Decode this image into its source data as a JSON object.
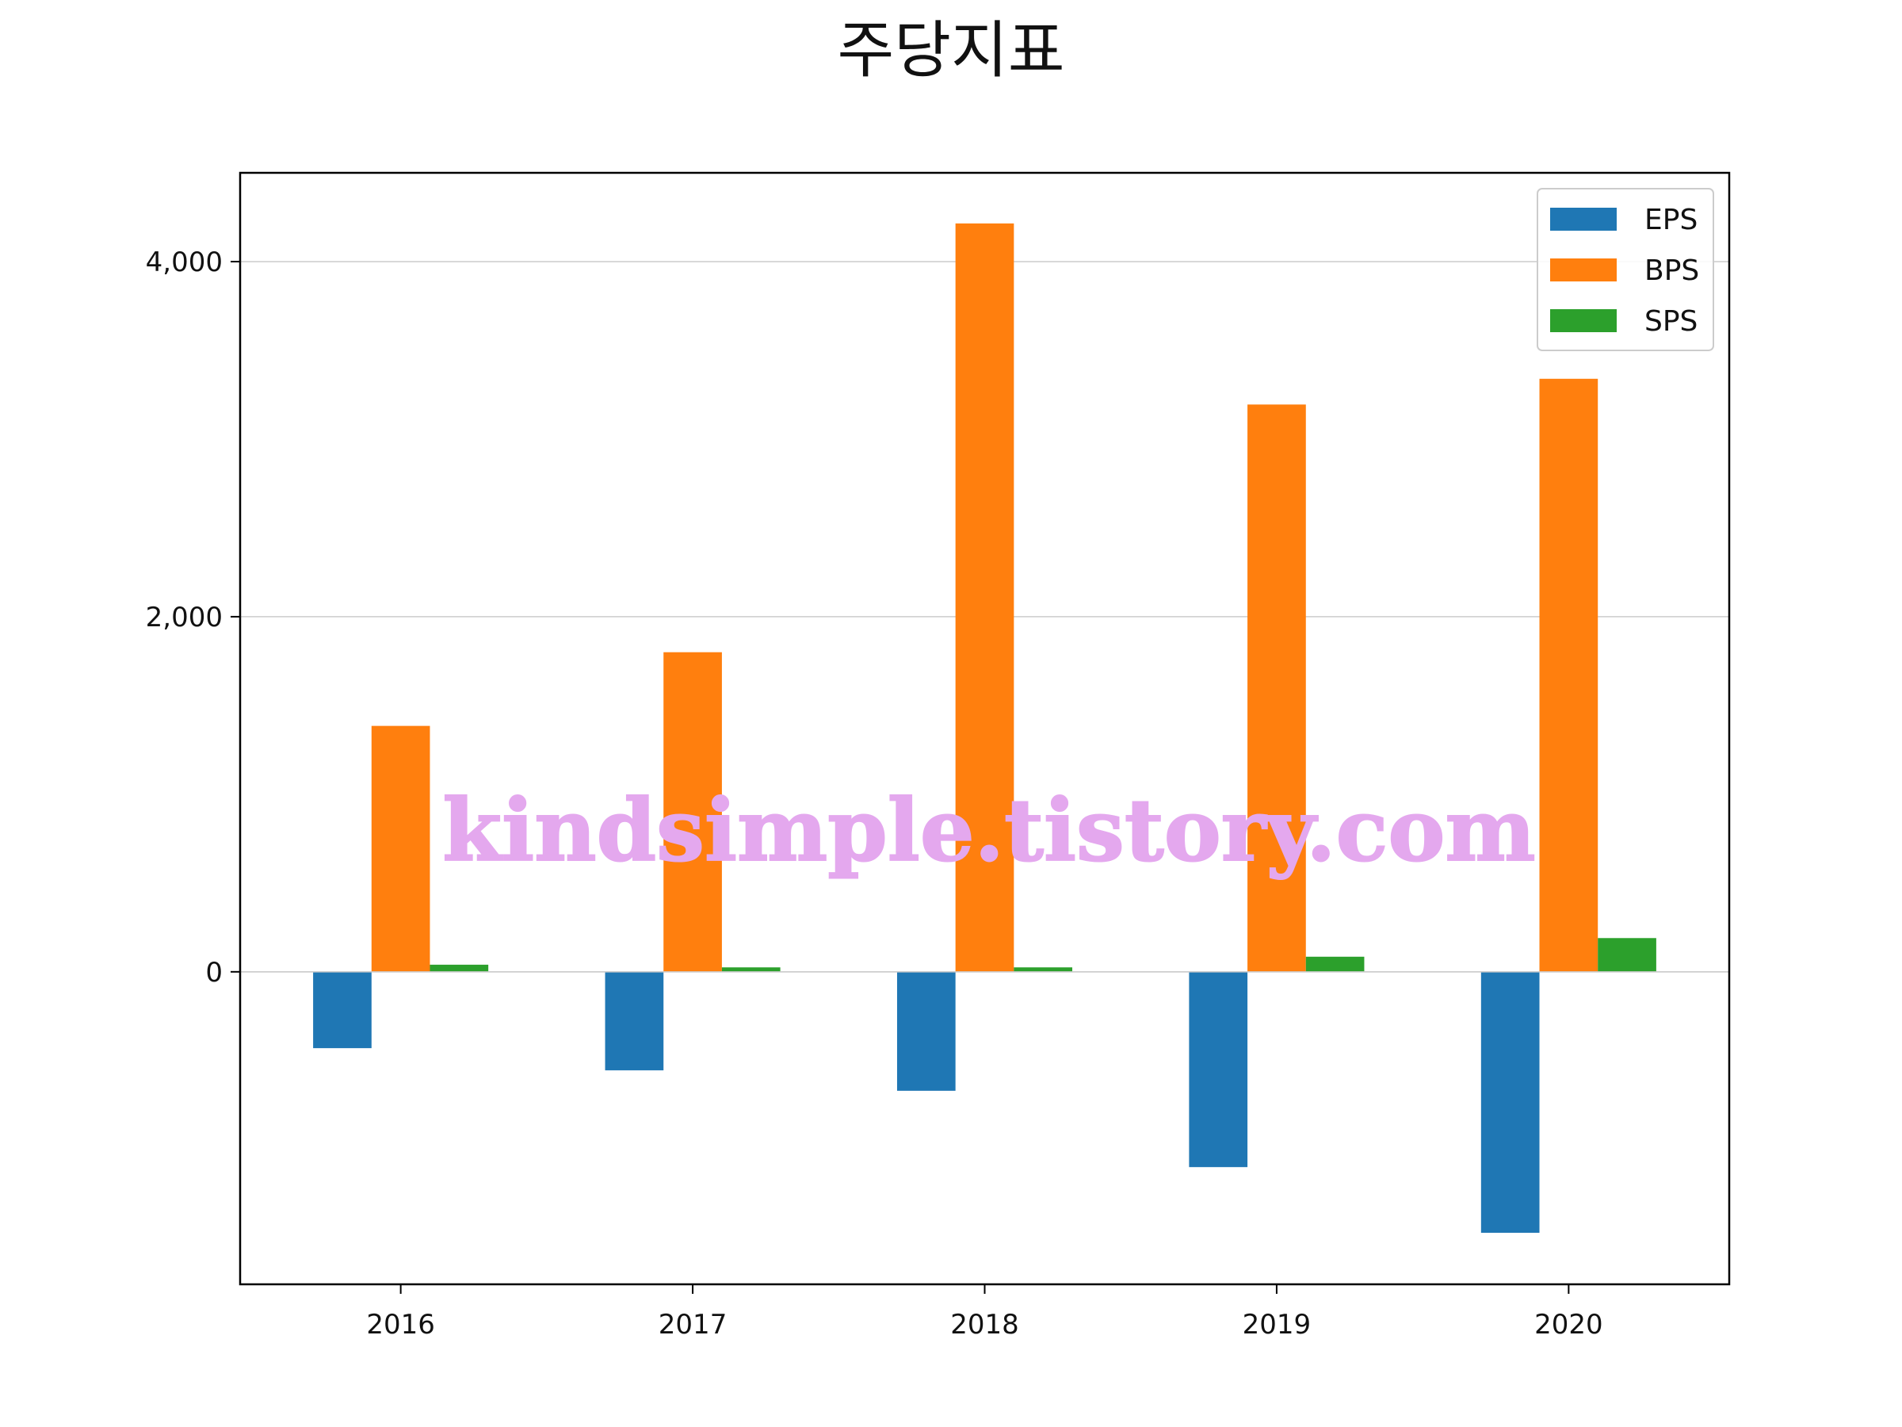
{
  "chart_data": {
    "type": "bar",
    "title": "주당지표",
    "xlabel": "",
    "ylabel": "",
    "categories": [
      "2016",
      "2017",
      "2018",
      "2019",
      "2020"
    ],
    "series": [
      {
        "name": "EPS",
        "color": "#1f77b4",
        "values": [
          -430,
          -555,
          -670,
          -1100,
          -1470
        ]
      },
      {
        "name": "BPS",
        "color": "#ff7f0e",
        "values": [
          1385,
          1800,
          4215,
          3195,
          3340
        ]
      },
      {
        "name": "SPS",
        "color": "#2ca02c",
        "values": [
          40,
          25,
          25,
          85,
          190
        ]
      }
    ],
    "ylim": [
      -1760,
      4500
    ],
    "yticks": [
      0,
      2000,
      4000
    ],
    "ytick_labels": [
      "0",
      "2,000",
      "4,000"
    ],
    "grid": "horizontal",
    "legend_position": "top-right"
  },
  "watermark": "kindsimple.tistory.com"
}
